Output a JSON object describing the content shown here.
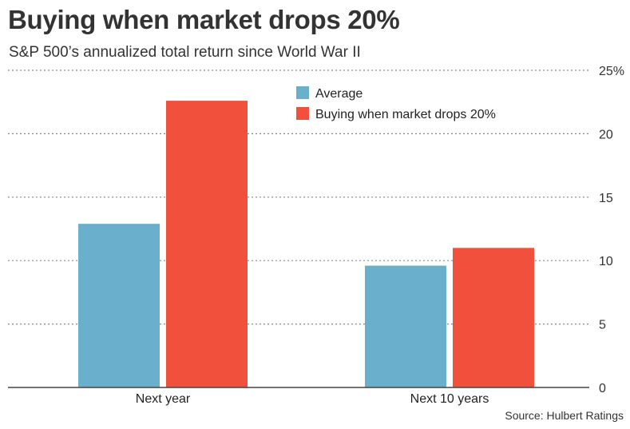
{
  "title": "Buying when market drops 20%",
  "subtitle": "S&P 500’s annualized total return since World War II",
  "source": "Source: Hulbert Ratings",
  "colors": {
    "average": "#6aafcc",
    "drop": "#f0503c",
    "grid": "#888888",
    "text": "#333333"
  },
  "chart_data": {
    "type": "bar",
    "title": "Buying when market drops 20%",
    "subtitle": "S&P 500’s annualized total return since World War II",
    "categories": [
      "Next year",
      "Next 10 years"
    ],
    "series": [
      {
        "name": "Average",
        "values": [
          12.9,
          9.6
        ]
      },
      {
        "name": "Buying when market drops 20%",
        "values": [
          22.6,
          11.0
        ]
      }
    ],
    "ylim": [
      0,
      25
    ],
    "yticks": [
      0,
      5,
      10,
      15,
      20,
      25
    ],
    "ytick_labels": [
      "0",
      "5",
      "10",
      "15",
      "20",
      "25%"
    ],
    "y_axis_side": "right",
    "grid": true,
    "legend_position": "top-center",
    "xlabel": "",
    "ylabel": ""
  }
}
